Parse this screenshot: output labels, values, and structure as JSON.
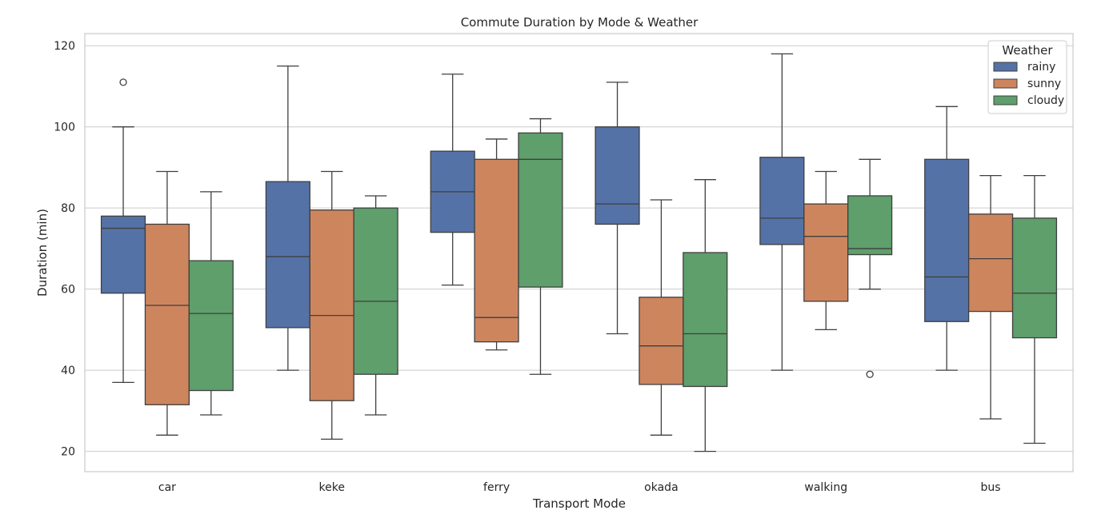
{
  "chart_data": {
    "type": "boxplot",
    "title": "Commute Duration by Mode & Weather",
    "xlabel": "Transport Mode",
    "ylabel": "Duration (min)",
    "ylim": [
      15,
      123
    ],
    "yticks": [
      20,
      40,
      60,
      80,
      100,
      120
    ],
    "grid": true,
    "categories": [
      "car",
      "keke",
      "ferry",
      "okada",
      "walking",
      "bus"
    ],
    "legend": {
      "title": "Weather",
      "placement": "top-right"
    },
    "series": [
      {
        "name": "rainy",
        "color": "#5572a6",
        "boxes": [
          {
            "whisker_low": 37,
            "q1": 59,
            "median": 75,
            "q3": 78,
            "whisker_high": 100,
            "outliers": [
              111
            ]
          },
          {
            "whisker_low": 40,
            "q1": 50.5,
            "median": 68,
            "q3": 86.5,
            "whisker_high": 115,
            "outliers": []
          },
          {
            "whisker_low": 61,
            "q1": 74,
            "median": 84,
            "q3": 94,
            "whisker_high": 113,
            "outliers": []
          },
          {
            "whisker_low": 49,
            "q1": 76,
            "median": 81,
            "q3": 100,
            "whisker_high": 111,
            "outliers": []
          },
          {
            "whisker_low": 40,
            "q1": 71,
            "median": 77.5,
            "q3": 92.5,
            "whisker_high": 118,
            "outliers": []
          },
          {
            "whisker_low": 40,
            "q1": 52,
            "median": 63,
            "q3": 92,
            "whisker_high": 105,
            "outliers": []
          }
        ]
      },
      {
        "name": "sunny",
        "color": "#cd855e",
        "boxes": [
          {
            "whisker_low": 24,
            "q1": 31.5,
            "median": 56,
            "q3": 76,
            "whisker_high": 89,
            "outliers": []
          },
          {
            "whisker_low": 23,
            "q1": 32.5,
            "median": 53.5,
            "q3": 79.5,
            "whisker_high": 89,
            "outliers": []
          },
          {
            "whisker_low": 45,
            "q1": 47,
            "median": 53,
            "q3": 92,
            "whisker_high": 97,
            "outliers": []
          },
          {
            "whisker_low": 24,
            "q1": 36.5,
            "median": 46,
            "q3": 58,
            "whisker_high": 82,
            "outliers": []
          },
          {
            "whisker_low": 50,
            "q1": 57,
            "median": 73,
            "q3": 81,
            "whisker_high": 89,
            "outliers": []
          },
          {
            "whisker_low": 28,
            "q1": 54.5,
            "median": 67.5,
            "q3": 78.5,
            "whisker_high": 88,
            "outliers": []
          }
        ]
      },
      {
        "name": "cloudy",
        "color": "#5e9f6b",
        "boxes": [
          {
            "whisker_low": 29,
            "q1": 35,
            "median": 54,
            "q3": 67,
            "whisker_high": 84,
            "outliers": []
          },
          {
            "whisker_low": 29,
            "q1": 39,
            "median": 57,
            "q3": 80,
            "whisker_high": 83,
            "outliers": []
          },
          {
            "whisker_low": 39,
            "q1": 60.5,
            "median": 92,
            "q3": 98.5,
            "whisker_high": 102,
            "outliers": []
          },
          {
            "whisker_low": 20,
            "q1": 36,
            "median": 49,
            "q3": 69,
            "whisker_high": 87,
            "outliers": []
          },
          {
            "whisker_low": 60,
            "q1": 68.5,
            "median": 70,
            "q3": 83,
            "whisker_high": 92,
            "outliers": [
              39
            ]
          },
          {
            "whisker_low": 22,
            "q1": 48,
            "median": 59,
            "q3": 77.5,
            "whisker_high": 88,
            "outliers": []
          }
        ]
      }
    ]
  }
}
